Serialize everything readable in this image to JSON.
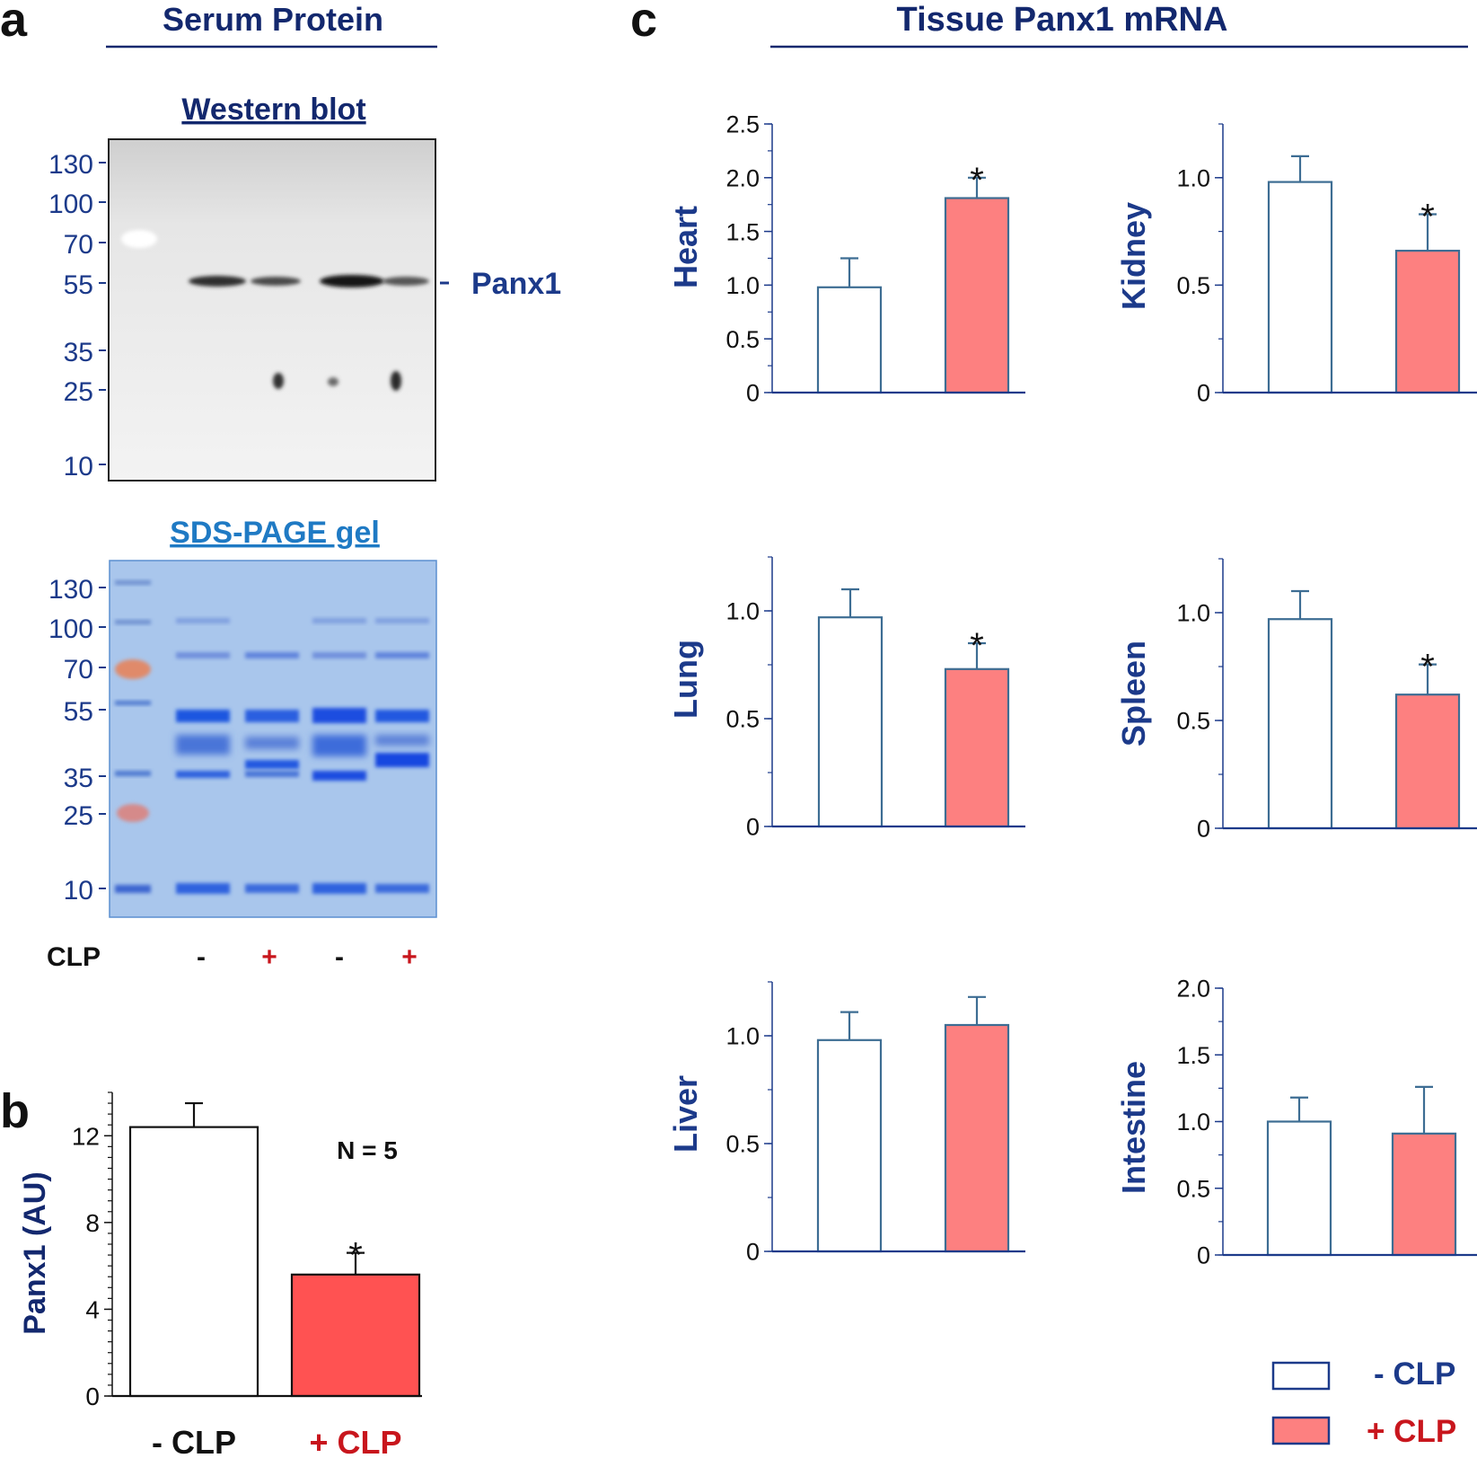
{
  "colors": {
    "navy": "#13286e",
    "blue": "#1c3a8a",
    "red_text": "#c8161d",
    "bar_red": "#ff5252",
    "bar_pink": "#fd8080",
    "bar_edge": "#3d6d93",
    "sds_title": "#1f7ac4",
    "gel_bg": "#a9c6ec",
    "black": "#111111"
  },
  "panel_a": {
    "letter": "a",
    "title": "Serum Protein",
    "western": {
      "title": "Western blot",
      "markers": [
        "130",
        "100",
        "70",
        "55",
        "35",
        "25",
        "10"
      ],
      "band_label": "Panx1"
    },
    "sds": {
      "title": "SDS-PAGE gel",
      "markers": [
        "130",
        "100",
        "70",
        "55",
        "35",
        "25",
        "10"
      ]
    },
    "clp_row": {
      "label": "CLP",
      "signs": [
        "-",
        "+",
        "-",
        "+"
      ]
    }
  },
  "panel_b": {
    "letter": "b",
    "n_label": "N = 5",
    "star": "*"
  },
  "panel_c": {
    "letter": "c",
    "title": "Tissue Panx1 mRNA"
  },
  "legend": {
    "items": [
      {
        "label": "- CLP",
        "fill": "#ffffff"
      },
      {
        "label": "+ CLP",
        "fill": "#fd8080"
      }
    ]
  },
  "chart_data": [
    {
      "id": "b",
      "type": "bar",
      "categories": [
        "- CLP",
        "+ CLP"
      ],
      "values": [
        12.4,
        5.6
      ],
      "errors": [
        1.1,
        1.0
      ],
      "significant": [
        false,
        true
      ],
      "ylabel": "Panx1 (AU)",
      "ylim": [
        0,
        14
      ],
      "yticks": [
        "0",
        "4",
        "8",
        "12"
      ],
      "tick_values": [
        0,
        4,
        8,
        12
      ]
    },
    {
      "id": "heart",
      "type": "bar",
      "ylabel": "Heart",
      "categories": [
        "- CLP",
        "+ CLP"
      ],
      "values": [
        0.98,
        1.81
      ],
      "errors": [
        0.27,
        0.19
      ],
      "significant": [
        false,
        true
      ],
      "ylim": [
        0,
        2.5
      ],
      "yticks": [
        "0",
        "0.5",
        "1.0",
        "1.5",
        "2.0",
        "2.5"
      ],
      "tick_values": [
        0,
        0.5,
        1.0,
        1.5,
        2.0,
        2.5
      ]
    },
    {
      "id": "kidney",
      "type": "bar",
      "ylabel": "Kidney",
      "categories": [
        "- CLP",
        "+ CLP"
      ],
      "values": [
        0.98,
        0.66
      ],
      "errors": [
        0.12,
        0.17
      ],
      "significant": [
        false,
        true
      ],
      "ylim": [
        0,
        1.25
      ],
      "yticks": [
        "0",
        "0.5",
        "1.0"
      ],
      "tick_values": [
        0,
        0.5,
        1.0
      ]
    },
    {
      "id": "lung",
      "type": "bar",
      "ylabel": "Lung",
      "categories": [
        "- CLP",
        "+ CLP"
      ],
      "values": [
        0.97,
        0.73
      ],
      "errors": [
        0.13,
        0.12
      ],
      "significant": [
        false,
        true
      ],
      "ylim": [
        0,
        1.25
      ],
      "yticks": [
        "0",
        "0.5",
        "1.0"
      ],
      "tick_values": [
        0,
        0.5,
        1.0
      ]
    },
    {
      "id": "spleen",
      "type": "bar",
      "ylabel": "Spleen",
      "categories": [
        "- CLP",
        "+ CLP"
      ],
      "values": [
        0.97,
        0.62
      ],
      "errors": [
        0.13,
        0.14
      ],
      "significant": [
        false,
        true
      ],
      "ylim": [
        0,
        1.25
      ],
      "yticks": [
        "0",
        "0.5",
        "1.0"
      ],
      "tick_values": [
        0,
        0.5,
        1.0
      ]
    },
    {
      "id": "liver",
      "type": "bar",
      "ylabel": "Liver",
      "categories": [
        "- CLP",
        "+ CLP"
      ],
      "values": [
        0.98,
        1.05
      ],
      "errors": [
        0.13,
        0.13
      ],
      "significant": [
        false,
        false
      ],
      "ylim": [
        0,
        1.25
      ],
      "yticks": [
        "0",
        "0.5",
        "1.0"
      ],
      "tick_values": [
        0,
        0.5,
        1.0
      ]
    },
    {
      "id": "intestine",
      "type": "bar",
      "ylabel": "Intestine",
      "categories": [
        "- CLP",
        "+ CLP"
      ],
      "values": [
        1.0,
        0.91
      ],
      "errors": [
        0.18,
        0.35
      ],
      "significant": [
        false,
        false
      ],
      "ylim": [
        0,
        2.0
      ],
      "yticks": [
        "0",
        "0.5",
        "1.0",
        "1.5",
        "2.0"
      ],
      "tick_values": [
        0,
        0.5,
        1.0,
        1.5,
        2.0
      ]
    }
  ]
}
